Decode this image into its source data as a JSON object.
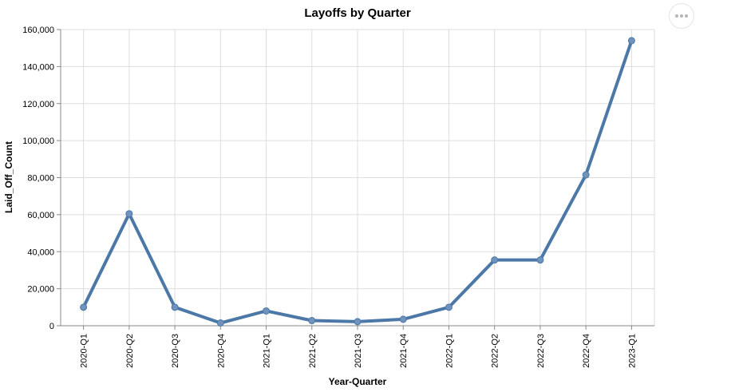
{
  "chart_data": {
    "type": "line",
    "title": "Layoffs by Quarter",
    "xlabel": "Year-Quarter",
    "ylabel": "Laid_Off_Count",
    "categories": [
      "2020-Q1",
      "2020-Q2",
      "2020-Q3",
      "2020-Q4",
      "2021-Q1",
      "2021-Q2",
      "2021-Q3",
      "2021-Q4",
      "2022-Q1",
      "2022-Q2",
      "2022-Q3",
      "2022-Q4",
      "2023-Q1"
    ],
    "values": [
      10000,
      60500,
      10000,
      1500,
      8000,
      2800,
      2200,
      3500,
      10000,
      35500,
      35500,
      81500,
      154000
    ],
    "ylim": [
      0,
      160000
    ],
    "yticks": [
      0,
      20000,
      40000,
      60000,
      80000,
      100000,
      120000,
      140000,
      160000
    ],
    "ytick_labels": [
      "0",
      "20,000",
      "40,000",
      "60,000",
      "80,000",
      "100,000",
      "120,000",
      "140,000",
      "160,000"
    ],
    "grid": true,
    "legend": "none",
    "line_color": "#4c78a8"
  },
  "actions_menu": {
    "icon": "more-horizontal-icon"
  }
}
